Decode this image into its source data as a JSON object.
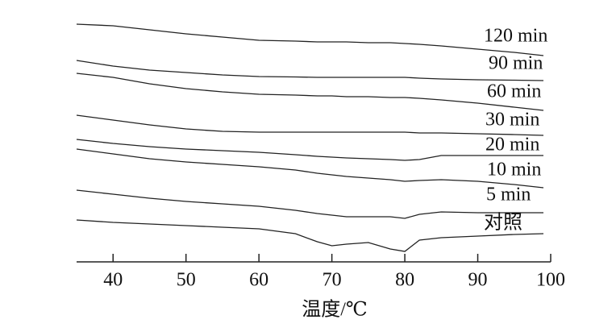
{
  "chart_data": {
    "type": "line",
    "x_label": "温度/℃",
    "x": [
      35,
      40,
      45,
      50,
      55,
      60,
      65,
      68,
      70,
      72,
      75,
      78,
      80,
      82,
      85,
      90,
      95,
      99
    ],
    "xlim": [
      35,
      100
    ],
    "xticks": [
      40,
      50,
      60,
      70,
      80,
      90,
      100
    ],
    "ylim": [
      0,
      310
    ],
    "color": "#222222",
    "series": [
      {
        "name": "120 min",
        "values": [
          300,
          298,
          293,
          288,
          284,
          280,
          279,
          278,
          278,
          278,
          277,
          277,
          276,
          275,
          273,
          269,
          265,
          261
        ]
      },
      {
        "name": "90 min",
        "values": [
          255,
          248,
          243,
          240,
          237,
          235,
          234.5,
          234,
          234,
          234,
          234,
          234,
          234,
          233,
          232,
          231,
          230.5,
          230
        ]
      },
      {
        "name": "60 min",
        "values": [
          239,
          234,
          226,
          220,
          216,
          213,
          212,
          211,
          211,
          210,
          210,
          209,
          209,
          208,
          206,
          202,
          197,
          193
        ]
      },
      {
        "name": "30 min",
        "values": [
          187,
          181,
          175,
          170,
          167,
          166,
          166,
          166,
          166,
          166,
          166,
          166,
          166,
          165,
          165,
          164,
          163,
          162
        ]
      },
      {
        "name": "20 min",
        "values": [
          157,
          152,
          148,
          145,
          143,
          141,
          138,
          136,
          135,
          134,
          133,
          132,
          131,
          132,
          137,
          137,
          137,
          137
        ]
      },
      {
        "name": "10 min",
        "values": [
          145,
          139,
          133,
          129,
          126,
          123,
          119,
          115,
          113,
          111,
          109,
          107,
          105,
          106,
          107,
          105,
          101,
          97
        ]
      },
      {
        "name": "5 min",
        "values": [
          94,
          89,
          84,
          80,
          77,
          74,
          69,
          65,
          63,
          61,
          61,
          61,
          59,
          64,
          67,
          66,
          66,
          66
        ]
      },
      {
        "name": "对照",
        "values": [
          57,
          54,
          52,
          50,
          48,
          46,
          40,
          30,
          25,
          27,
          29,
          21,
          18,
          32,
          35,
          37,
          39,
          40
        ]
      }
    ]
  }
}
